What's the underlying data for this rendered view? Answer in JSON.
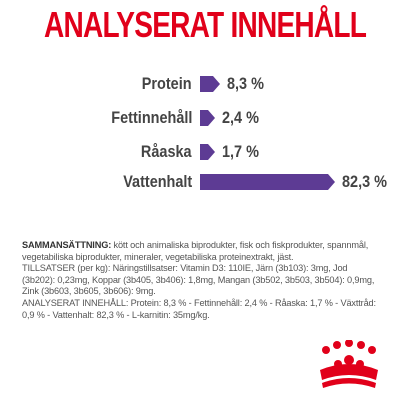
{
  "title": "ANALYSERAT INNEHÅLL",
  "nutrients": [
    {
      "label": "Protein",
      "value_text": "8,3 %",
      "value": 8.3
    },
    {
      "label": "Fettinnehåll",
      "value_text": "2,4 %",
      "value": 2.4
    },
    {
      "label": "Råaska",
      "value_text": "1,7 %",
      "value": 1.7
    },
    {
      "label": "Vattenhalt",
      "value_text": "82,3 %",
      "value": 82.3
    }
  ],
  "composition": {
    "heading": "SAMMANSÄTTNING:",
    "text": " kött och animaliska biprodukter, fisk och fiskprodukter, spannmål, vegetabiliska biprodukter, mineraler, vegetabiliska proteinextrakt, jäst.",
    "additives": "TILLSATSER (per kg): Näringstillsatser: Vitamin D3: 110IE, Järn (3b103): 3mg, Jod (3b202): 0,23mg, Koppar (3b405, 3b406): 1,8mg, Mangan (3b502, 3b503, 3b504): 0,9mg, Zink (3b603, 3b605, 3b606): 9mg.",
    "analysis": "ANALYSERAT INNEHÅLL: Protein: 8,3 % - Fettinnehåll: 2,4 % - Råaska: 1,7 % - Växttråd: 0,9 % - Vattenhalt: 82,3 % - L-karnitin: 35mg/kg."
  },
  "colors": {
    "title": "#e1001a",
    "bar": "#5d3b94",
    "logo": "#e1001a"
  },
  "logo_icon": "royal-crown-icon"
}
